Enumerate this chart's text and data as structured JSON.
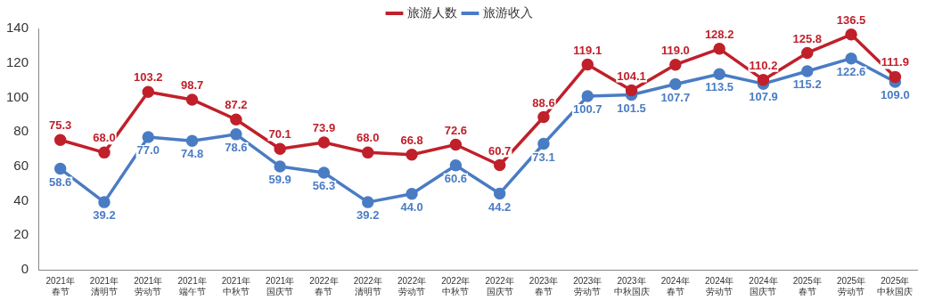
{
  "chart_data": {
    "type": "line",
    "categories": [
      "2021年春节",
      "2021年清明节",
      "2021年劳动节",
      "2021年端午节",
      "2021年中秋节",
      "2021年国庆节",
      "2022年春节",
      "2022年清明节",
      "2022年劳动节",
      "2022年中秋节",
      "2022年国庆节",
      "2023年春节",
      "2023年劳动节",
      "2023年中秋国庆",
      "2024年春节",
      "2024年劳动节",
      "2024年国庆节",
      "2025年春节",
      "2025年劳动节",
      "2025年中秋国庆"
    ],
    "series": [
      {
        "name": "旅游人数",
        "color": "#c0202a",
        "values": [
          75.3,
          68.0,
          103.2,
          98.7,
          87.2,
          70.1,
          73.9,
          68.0,
          66.8,
          72.6,
          60.7,
          88.6,
          119.1,
          104.1,
          119.0,
          128.2,
          110.2,
          125.8,
          136.5,
          111.9
        ],
        "value_labels": [
          "75.3",
          "68.0",
          "103.2",
          "98.7",
          "87.2",
          "70.1",
          "73.9",
          "68.0",
          "66.8",
          "72.6",
          "60.7",
          "88.6",
          "119.1",
          "104.1",
          "119.0",
          "128.2",
          "110.2",
          "125.8",
          "136.5",
          "111.9"
        ]
      },
      {
        "name": "旅游收入",
        "color": "#4a7cc4",
        "values": [
          58.6,
          39.2,
          77.0,
          74.8,
          78.6,
          59.9,
          56.3,
          39.2,
          44.0,
          60.6,
          44.2,
          73.1,
          100.7,
          101.5,
          107.7,
          113.5,
          107.9,
          115.2,
          122.6,
          109.0
        ],
        "value_labels": [
          "58.6",
          "39.2",
          "77.0",
          "74.8",
          "78.6",
          "59.9",
          "56.3",
          "39.2",
          "44.0",
          "60.6",
          "44.2",
          "73.1",
          "100.7",
          "101.5",
          "107.7",
          "113.5",
          "107.9",
          "115.2",
          "122.6",
          "109.0"
        ]
      }
    ],
    "ylim": [
      0,
      140
    ],
    "yticks": [
      0,
      20,
      40,
      60,
      80,
      100,
      120,
      140
    ],
    "grid": false,
    "legend": "top",
    "marker": "circle",
    "line_style": "solid"
  }
}
